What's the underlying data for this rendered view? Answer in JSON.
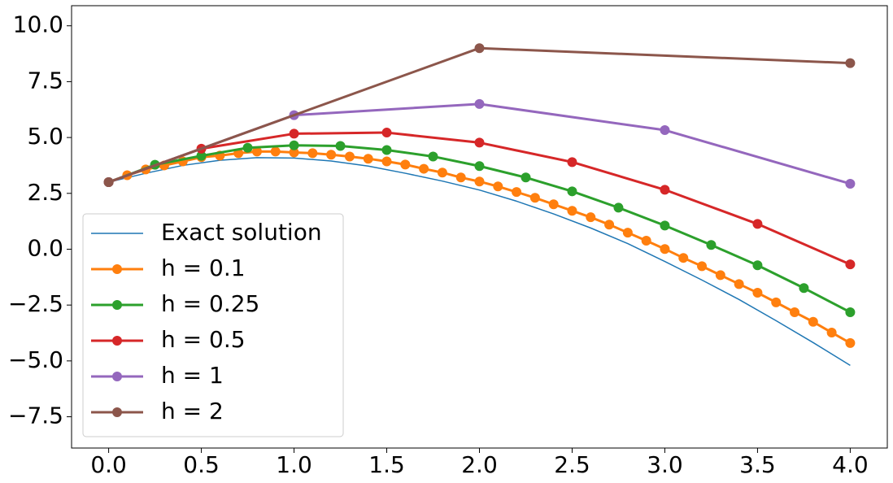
{
  "chart_data": {
    "type": "line",
    "xlim": [
      -0.2,
      4.2
    ],
    "ylim": [
      -8.9,
      10.9
    ],
    "xticks": [
      {
        "value": 0,
        "label": "0.0"
      },
      {
        "value": 0.5,
        "label": "0.5"
      },
      {
        "value": 1,
        "label": "1.0"
      },
      {
        "value": 1.5,
        "label": "1.5"
      },
      {
        "value": 2,
        "label": "2.0"
      },
      {
        "value": 2.5,
        "label": "2.5"
      },
      {
        "value": 3,
        "label": "3.0"
      },
      {
        "value": 3.5,
        "label": "3.5"
      },
      {
        "value": 4,
        "label": "4.0"
      }
    ],
    "yticks": [
      {
        "value": -7.5,
        "label": "−7.5"
      },
      {
        "value": -5,
        "label": "−5.0"
      },
      {
        "value": -2.5,
        "label": "−2.5"
      },
      {
        "value": 0,
        "label": "0.0"
      },
      {
        "value": 2.5,
        "label": "2.5"
      },
      {
        "value": 5,
        "label": "5.0"
      },
      {
        "value": 7.5,
        "label": "7.5"
      },
      {
        "value": 10,
        "label": "10.0"
      }
    ],
    "legend": "lower left",
    "series": [
      {
        "name": "Exact solution",
        "color": "#1f77b4",
        "markers": false,
        "x": [
          0,
          0.2,
          0.4,
          0.6,
          0.8,
          1.0,
          1.2,
          1.4,
          1.6,
          1.8,
          2.0,
          2.2,
          2.4,
          2.6,
          2.8,
          3.0,
          3.2,
          3.4,
          3.6,
          3.8,
          4.0
        ],
        "values": [
          3,
          3.4,
          3.75,
          3.98,
          4.1,
          4.08,
          3.95,
          3.72,
          3.4,
          3.05,
          2.65,
          2.15,
          1.58,
          0.95,
          0.25,
          -0.55,
          -1.38,
          -2.25,
          -3.2,
          -4.18,
          -5.2
        ]
      },
      {
        "name": "h = 0.1",
        "color": "#ff7f0e",
        "markers": true,
        "x": [
          0,
          0.1,
          0.2,
          0.3,
          0.4,
          0.5,
          0.6,
          0.7,
          0.8,
          0.9,
          1.0,
          1.1,
          1.2,
          1.3,
          1.4,
          1.5,
          1.6,
          1.7,
          1.8,
          1.9,
          2.0,
          2.1,
          2.2,
          2.3,
          2.4,
          2.5,
          2.6,
          2.7,
          2.8,
          2.9,
          3.0,
          3.1,
          3.2,
          3.3,
          3.4,
          3.5,
          3.6,
          3.7,
          3.8,
          3.9,
          4.0
        ],
        "values": [
          3,
          3.31,
          3.57,
          3.75,
          3.93,
          4.12,
          4.19,
          4.3,
          4.37,
          4.37,
          4.33,
          4.3,
          4.23,
          4.15,
          4.05,
          3.93,
          3.79,
          3.6,
          3.43,
          3.21,
          3.03,
          2.81,
          2.56,
          2.3,
          2.01,
          1.72,
          1.43,
          1.1,
          0.74,
          0.38,
          0.01,
          -0.39,
          -0.76,
          -1.16,
          -1.56,
          -1.95,
          -2.38,
          -2.82,
          -3.25,
          -3.73,
          -4.2
        ]
      },
      {
        "name": "h = 0.25",
        "color": "#2ca02c",
        "markers": true,
        "x": [
          0,
          0.25,
          0.5,
          0.75,
          1.0,
          1.25,
          1.5,
          1.75,
          2.0,
          2.25,
          2.5,
          2.75,
          3.0,
          3.25,
          3.5,
          3.75,
          4.0
        ],
        "values": [
          3,
          3.78,
          4.18,
          4.54,
          4.65,
          4.62,
          4.44,
          4.15,
          3.72,
          3.21,
          2.59,
          1.86,
          1.06,
          0.19,
          -0.72,
          -1.74,
          -2.82
        ]
      },
      {
        "name": "h = 0.5",
        "color": "#d62728",
        "markers": true,
        "x": [
          0,
          0.5,
          1.0,
          1.5,
          2.0,
          2.5,
          3.0,
          3.5,
          4.0
        ],
        "values": [
          3,
          4.5,
          5.17,
          5.22,
          4.77,
          3.9,
          2.66,
          1.13,
          -0.68
        ]
      },
      {
        "name": "h = 1",
        "color": "#9467bd",
        "markers": true,
        "x": [
          0,
          1,
          2,
          3,
          4
        ],
        "values": [
          3,
          6,
          6.5,
          5.33,
          2.93
        ]
      },
      {
        "name": "h = 2",
        "color": "#8c564b",
        "markers": true,
        "x": [
          0,
          2,
          4
        ],
        "values": [
          3,
          9,
          8.33
        ]
      }
    ]
  }
}
